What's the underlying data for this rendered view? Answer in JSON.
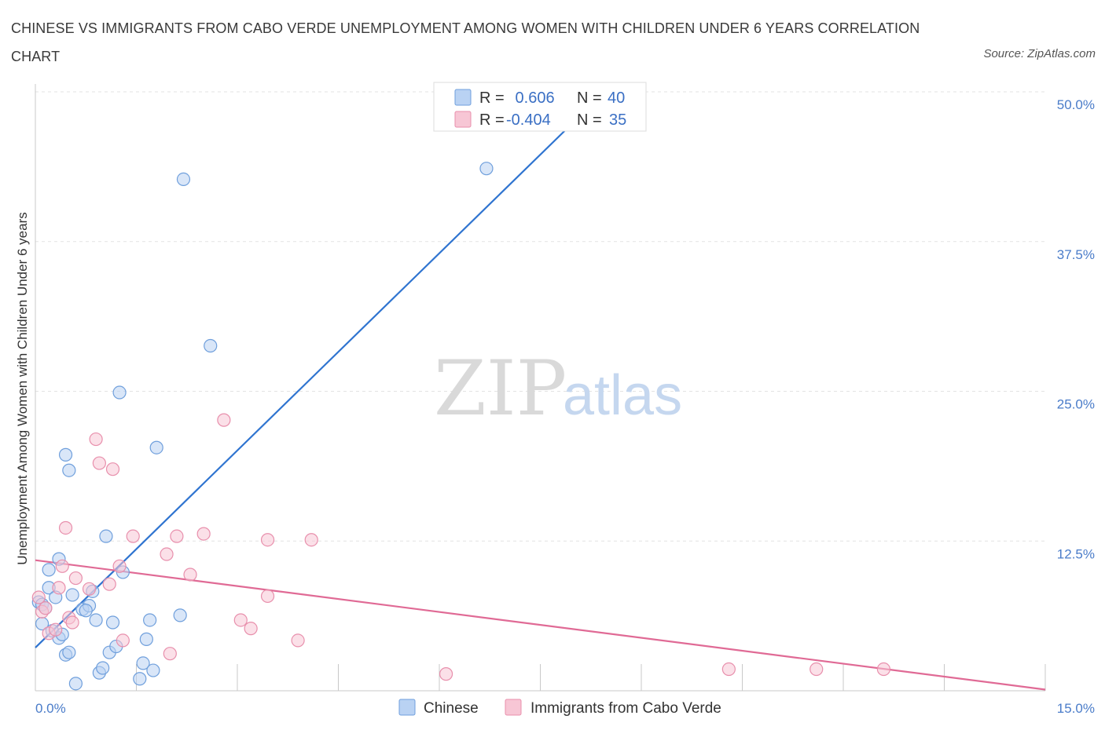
{
  "title": "CHINESE VS IMMIGRANTS FROM CABO VERDE UNEMPLOYMENT AMONG WOMEN WITH CHILDREN UNDER 6 YEARS CORRELATION CHART",
  "source": "Source: ZipAtlas.com",
  "watermark": {
    "zip": "ZIP",
    "atlas": "atlas"
  },
  "colors": {
    "chinese_fill": "#b9d2f3",
    "chinese_stroke": "#6f9fdc",
    "chinese_line": "#2f74d0",
    "cabo_fill": "#f7c6d5",
    "cabo_stroke": "#e88fac",
    "cabo_line": "#e06a95",
    "grid": "#e3e3e3",
    "tick_label": "#4a7cc9"
  },
  "legend": {
    "rows": [
      {
        "r_label": "R =",
        "r_value": " 0.606",
        "n_label": "N =",
        "n_value": "40"
      },
      {
        "r_label": "R =",
        "r_value": "-0.404",
        "n_label": "N =",
        "n_value": "35"
      }
    ]
  },
  "chart_data": {
    "type": "scatter",
    "title": "CHINESE VS IMMIGRANTS FROM CABO VERDE UNEMPLOYMENT AMONG WOMEN WITH CHILDREN UNDER 6 YEARS CORRELATION CHART",
    "xlabel": "",
    "ylabel": "Unemployment Among Women with Children Under 6 years",
    "xlim": [
      0,
      15
    ],
    "ylim": [
      0,
      50
    ],
    "x_tick_labels": [
      "0.0%",
      "15.0%"
    ],
    "y_ticks": [
      12.5,
      25,
      37.5,
      50
    ],
    "y_tick_labels": [
      "12.5%",
      "25.0%",
      "37.5%",
      "50.0%"
    ],
    "grid": true,
    "legend_position": "top-center",
    "series": [
      {
        "name": "Chinese",
        "color": "#6f9fdc",
        "r": 0.606,
        "n": 40,
        "trend": {
          "x": [
            0,
            8.0
          ],
          "y": [
            3.6,
            47.5
          ]
        },
        "points": [
          [
            0.05,
            7.4
          ],
          [
            0.1,
            7.2
          ],
          [
            0.1,
            5.6
          ],
          [
            0.15,
            6.9
          ],
          [
            0.2,
            10.1
          ],
          [
            0.2,
            8.6
          ],
          [
            0.25,
            5.0
          ],
          [
            0.3,
            7.8
          ],
          [
            0.35,
            11.0
          ],
          [
            0.35,
            4.4
          ],
          [
            0.4,
            4.7
          ],
          [
            0.45,
            3.0
          ],
          [
            0.45,
            19.7
          ],
          [
            0.5,
            18.4
          ],
          [
            0.5,
            3.2
          ],
          [
            0.55,
            8.0
          ],
          [
            0.6,
            0.6
          ],
          [
            0.7,
            6.8
          ],
          [
            0.8,
            7.1
          ],
          [
            0.85,
            8.3
          ],
          [
            0.9,
            5.9
          ],
          [
            0.95,
            1.5
          ],
          [
            1.0,
            1.9
          ],
          [
            1.05,
            12.9
          ],
          [
            1.1,
            3.2
          ],
          [
            1.15,
            5.7
          ],
          [
            1.2,
            3.7
          ],
          [
            1.25,
            24.9
          ],
          [
            1.3,
            9.9
          ],
          [
            1.55,
            1.0
          ],
          [
            1.6,
            2.3
          ],
          [
            1.65,
            4.3
          ],
          [
            1.7,
            5.9
          ],
          [
            1.75,
            1.7
          ],
          [
            1.8,
            20.3
          ],
          [
            2.15,
            6.3
          ],
          [
            2.2,
            42.7
          ],
          [
            2.6,
            28.8
          ],
          [
            6.7,
            43.6
          ],
          [
            0.75,
            6.7
          ]
        ]
      },
      {
        "name": "Immigrants from Cabo Verde",
        "color": "#e88fac",
        "r": -0.404,
        "n": 35,
        "trend": {
          "x": [
            0,
            15
          ],
          "y": [
            10.9,
            0.1
          ]
        },
        "points": [
          [
            0.05,
            7.8
          ],
          [
            0.1,
            6.6
          ],
          [
            0.15,
            6.9
          ],
          [
            0.2,
            4.8
          ],
          [
            0.3,
            5.1
          ],
          [
            0.35,
            8.6
          ],
          [
            0.4,
            10.4
          ],
          [
            0.45,
            13.6
          ],
          [
            0.5,
            6.1
          ],
          [
            0.55,
            5.7
          ],
          [
            0.6,
            9.4
          ],
          [
            0.8,
            8.5
          ],
          [
            0.9,
            21.0
          ],
          [
            0.95,
            19.0
          ],
          [
            1.1,
            8.9
          ],
          [
            1.15,
            18.5
          ],
          [
            1.25,
            10.4
          ],
          [
            1.3,
            4.2
          ],
          [
            1.45,
            12.9
          ],
          [
            1.95,
            11.4
          ],
          [
            2.0,
            3.1
          ],
          [
            2.1,
            12.9
          ],
          [
            2.3,
            9.7
          ],
          [
            2.5,
            13.1
          ],
          [
            2.8,
            22.6
          ],
          [
            3.05,
            5.9
          ],
          [
            3.2,
            5.2
          ],
          [
            3.45,
            12.6
          ],
          [
            3.45,
            7.9
          ],
          [
            3.9,
            4.2
          ],
          [
            4.1,
            12.6
          ],
          [
            6.1,
            1.4
          ],
          [
            10.3,
            1.8
          ],
          [
            11.6,
            1.8
          ],
          [
            12.6,
            1.8
          ]
        ]
      }
    ]
  }
}
